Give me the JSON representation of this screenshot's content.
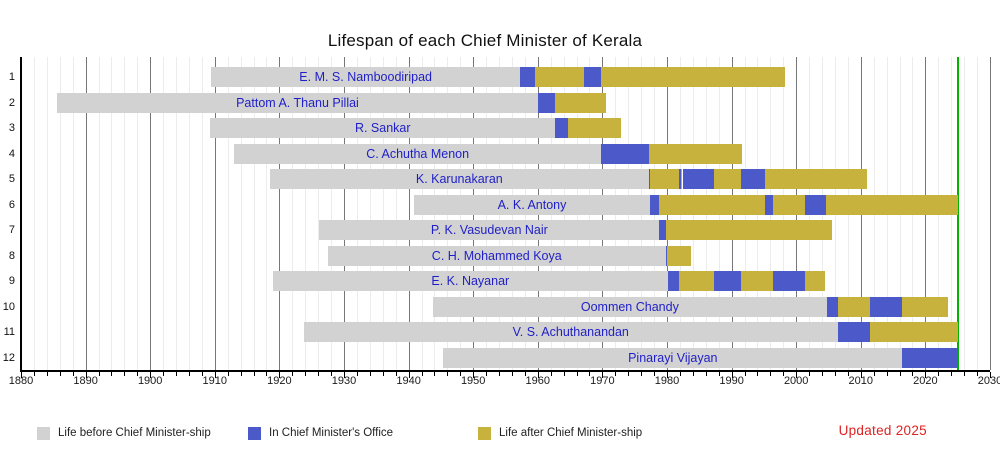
{
  "title": "Lifespan of each Chief Minister of Kerala",
  "updated_note": "Updated 2025",
  "colors": {
    "before": "#d2d2d2",
    "office": "#4b5ac8",
    "after": "#c7b23d",
    "now_line": "#00b400",
    "name_text": "#1f1fc8",
    "updated_text": "#dd2222",
    "grid_minor": "#ececec",
    "grid_major": "#777777",
    "axis": "#000000"
  },
  "legend": [
    {
      "label": "Life before Chief Minister-ship",
      "color_key": "before"
    },
    {
      "label": "In Chief Minister's Office",
      "color_key": "office"
    },
    {
      "label": "Life after Chief Minister-ship",
      "color_key": "after"
    }
  ],
  "chart_data": {
    "type": "bar",
    "subtype": "horizontal-lifespan-gantt",
    "title": "Lifespan of each Chief Minister of Kerala",
    "x_axis": {
      "min": 1880,
      "max": 2030,
      "minor_step": 2,
      "major_step": 10
    },
    "tick_labels": [
      "1880",
      "1890",
      "1900",
      "1910",
      "1920",
      "1930",
      "1940",
      "1950",
      "1960",
      "1970",
      "1980",
      "1990",
      "2000",
      "2010",
      "2020",
      "2030"
    ],
    "now_year": 2025,
    "rows": [
      {
        "num": "1",
        "name": "E. M. S. Namboodiripad",
        "segments": [
          {
            "type": "before",
            "from": 1909.4,
            "to": 1957.3
          },
          {
            "type": "office",
            "from": 1957.3,
            "to": 1959.6
          },
          {
            "type": "after",
            "from": 1959.6,
            "to": 1967.2
          },
          {
            "type": "office",
            "from": 1967.2,
            "to": 1969.8
          },
          {
            "type": "after",
            "from": 1969.8,
            "to": 1998.2
          }
        ]
      },
      {
        "num": "2",
        "name": "Pattom A. Thanu Pillai",
        "segments": [
          {
            "type": "before",
            "from": 1885.5,
            "to": 1960.1
          },
          {
            "type": "office",
            "from": 1960.1,
            "to": 1962.7
          },
          {
            "type": "after",
            "from": 1962.7,
            "to": 1970.6
          }
        ]
      },
      {
        "num": "3",
        "name": "R. Sankar",
        "segments": [
          {
            "type": "before",
            "from": 1909.3,
            "to": 1962.7
          },
          {
            "type": "office",
            "from": 1962.7,
            "to": 1964.7
          },
          {
            "type": "after",
            "from": 1964.7,
            "to": 1972.9
          }
        ]
      },
      {
        "num": "4",
        "name": "C. Achutha Menon",
        "segments": [
          {
            "type": "before",
            "from": 1913.0,
            "to": 1969.8
          },
          {
            "type": "office",
            "from": 1969.8,
            "to": 1977.2
          },
          {
            "type": "after",
            "from": 1977.2,
            "to": 1991.6
          }
        ]
      },
      {
        "num": "5",
        "name": "K. Karunakaran",
        "segments": [
          {
            "type": "before",
            "from": 1918.5,
            "to": 1977.2
          },
          {
            "type": "office",
            "from": 1977.2,
            "to": 1977.4
          },
          {
            "type": "after",
            "from": 1977.4,
            "to": 1981.9
          },
          {
            "type": "office",
            "from": 1981.9,
            "to": 1982.2
          },
          {
            "type": "after",
            "from": 1982.2,
            "to": 1982.4
          },
          {
            "type": "office",
            "from": 1982.4,
            "to": 1987.2
          },
          {
            "type": "after",
            "from": 1987.2,
            "to": 1991.4
          },
          {
            "type": "office",
            "from": 1991.4,
            "to": 1995.2
          },
          {
            "type": "after",
            "from": 1995.2,
            "to": 2011.0
          }
        ]
      },
      {
        "num": "6",
        "name": "A. K. Antony",
        "segments": [
          {
            "type": "before",
            "from": 1940.9,
            "to": 1977.3
          },
          {
            "type": "office",
            "from": 1977.3,
            "to": 1978.8
          },
          {
            "type": "after",
            "from": 1978.8,
            "to": 1995.2
          },
          {
            "type": "office",
            "from": 1995.2,
            "to": 1996.4
          },
          {
            "type": "after",
            "from": 1996.4,
            "to": 2001.4
          },
          {
            "type": "office",
            "from": 2001.4,
            "to": 2004.6
          },
          {
            "type": "after",
            "from": 2004.6,
            "to": 2025.0
          }
        ]
      },
      {
        "num": "7",
        "name": "P. K. Vasudevan Nair",
        "segments": [
          {
            "type": "before",
            "from": 1926.2,
            "to": 1978.8
          },
          {
            "type": "office",
            "from": 1978.8,
            "to": 1979.8
          },
          {
            "type": "after",
            "from": 1979.8,
            "to": 2005.5
          }
        ]
      },
      {
        "num": "8",
        "name": "C. H. Mohammed Koya",
        "segments": [
          {
            "type": "before",
            "from": 1927.5,
            "to": 1979.8
          },
          {
            "type": "office",
            "from": 1979.8,
            "to": 1980.0
          },
          {
            "type": "after",
            "from": 1980.0,
            "to": 1983.7
          }
        ]
      },
      {
        "num": "9",
        "name": "E. K. Nayanar",
        "segments": [
          {
            "type": "before",
            "from": 1919.0,
            "to": 1980.1
          },
          {
            "type": "office",
            "from": 1980.1,
            "to": 1981.8
          },
          {
            "type": "after",
            "from": 1981.8,
            "to": 1987.2
          },
          {
            "type": "office",
            "from": 1987.2,
            "to": 1991.5
          },
          {
            "type": "after",
            "from": 1991.5,
            "to": 1996.4
          },
          {
            "type": "office",
            "from": 1996.4,
            "to": 2001.4
          },
          {
            "type": "after",
            "from": 2001.4,
            "to": 2004.4
          }
        ]
      },
      {
        "num": "10",
        "name": "Oommen Chandy",
        "segments": [
          {
            "type": "before",
            "from": 1943.8,
            "to": 2004.7
          },
          {
            "type": "office",
            "from": 2004.7,
            "to": 2006.4
          },
          {
            "type": "after",
            "from": 2006.4,
            "to": 2011.4
          },
          {
            "type": "office",
            "from": 2011.4,
            "to": 2016.4
          },
          {
            "type": "after",
            "from": 2016.4,
            "to": 2023.5
          }
        ]
      },
      {
        "num": "11",
        "name": "V. S. Achuthanandan",
        "segments": [
          {
            "type": "before",
            "from": 1923.8,
            "to": 2006.4
          },
          {
            "type": "office",
            "from": 2006.4,
            "to": 2011.4
          },
          {
            "type": "after",
            "from": 2011.4,
            "to": 2025.0
          }
        ]
      },
      {
        "num": "12",
        "name": "Pinarayi Vijayan",
        "segments": [
          {
            "type": "before",
            "from": 1945.4,
            "to": 2016.4
          },
          {
            "type": "office",
            "from": 2016.4,
            "to": 2025.0
          }
        ]
      }
    ]
  }
}
